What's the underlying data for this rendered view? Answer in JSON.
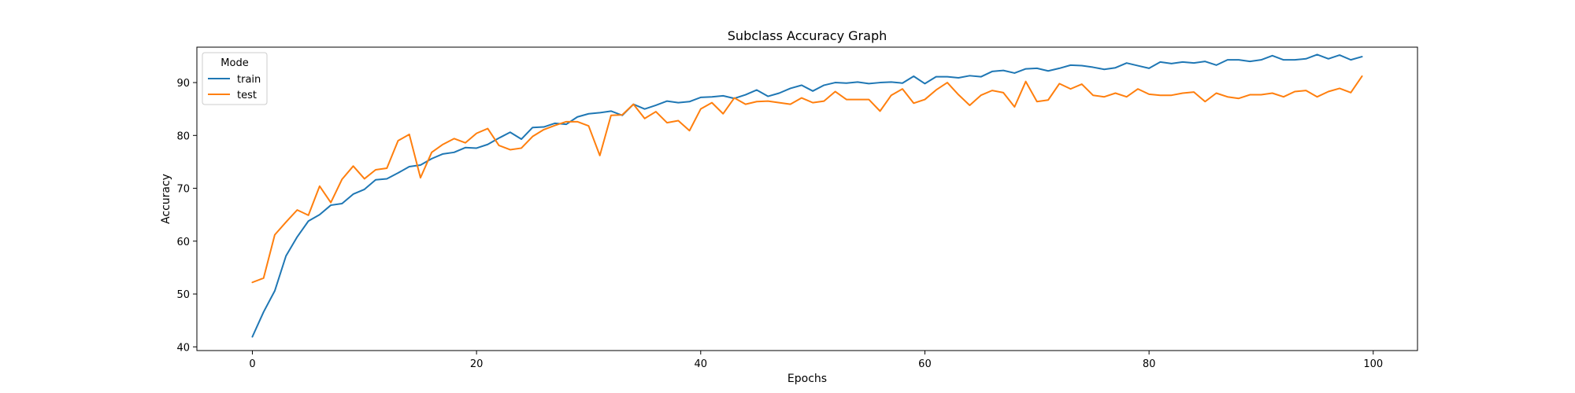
{
  "chart_data": {
    "type": "line",
    "title": "Subclass Accuracy Graph",
    "xlabel": "Epochs",
    "ylabel": "Accuracy",
    "xlim": [
      -4.95,
      103.95
    ],
    "ylim": [
      39.3,
      96.7
    ],
    "xticks": [
      0,
      20,
      40,
      60,
      80,
      100
    ],
    "yticks": [
      40,
      50,
      60,
      70,
      80,
      90
    ],
    "grid": false,
    "legend": {
      "title": "Mode",
      "placement": "top-left"
    },
    "x_start": 0,
    "x_step": 1,
    "series": [
      {
        "name": "train",
        "color": "#1f77b4",
        "values": [
          41.9,
          46.6,
          50.6,
          57.2,
          60.8,
          63.8,
          65.0,
          66.8,
          67.1,
          68.9,
          69.8,
          71.6,
          71.8,
          72.9,
          74.1,
          74.4,
          75.6,
          76.5,
          76.8,
          77.7,
          77.6,
          78.3,
          79.5,
          80.6,
          79.3,
          81.5,
          81.6,
          82.3,
          82.1,
          83.5,
          84.1,
          84.3,
          84.6,
          83.8,
          85.9,
          85.0,
          85.7,
          86.5,
          86.2,
          86.4,
          87.2,
          87.3,
          87.5,
          87.0,
          87.7,
          88.6,
          87.4,
          88.0,
          88.9,
          89.5,
          88.4,
          89.5,
          90.0,
          89.9,
          90.1,
          89.8,
          90.0,
          90.1,
          89.9,
          91.2,
          89.8,
          91.1,
          91.1,
          90.9,
          91.3,
          91.1,
          92.1,
          92.3,
          91.8,
          92.6,
          92.7,
          92.2,
          92.7,
          93.3,
          93.2,
          92.9,
          92.5,
          92.8,
          93.7,
          93.2,
          92.7,
          93.9,
          93.6,
          93.9,
          93.7,
          94.0,
          93.3,
          94.3,
          94.3,
          94.0,
          94.3,
          95.1,
          94.3,
          94.3,
          94.5,
          95.3,
          94.5,
          95.2,
          94.3,
          94.9
        ]
      },
      {
        "name": "test",
        "color": "#ff7f0e",
        "values": [
          52.2,
          53.0,
          61.2,
          63.6,
          65.9,
          64.9,
          70.4,
          67.3,
          71.7,
          74.2,
          71.8,
          73.5,
          73.8,
          79.0,
          80.2,
          72.0,
          76.8,
          78.3,
          79.4,
          78.6,
          80.4,
          81.3,
          78.1,
          77.3,
          77.6,
          79.8,
          81.1,
          81.9,
          82.6,
          82.6,
          81.8,
          76.2,
          83.8,
          83.9,
          85.9,
          83.2,
          84.5,
          82.4,
          82.8,
          80.9,
          85.0,
          86.2,
          84.1,
          87.1,
          85.9,
          86.4,
          86.5,
          86.2,
          85.9,
          87.1,
          86.2,
          86.5,
          88.3,
          86.8,
          86.8,
          86.8,
          84.6,
          87.6,
          88.8,
          86.1,
          86.8,
          88.6,
          90.0,
          87.7,
          85.7,
          87.6,
          88.5,
          88.1,
          85.4,
          90.2,
          86.4,
          86.7,
          89.8,
          88.8,
          89.7,
          87.6,
          87.3,
          88.0,
          87.3,
          88.8,
          87.8,
          87.6,
          87.6,
          88.0,
          88.2,
          86.4,
          88.0,
          87.3,
          87.0,
          87.7,
          87.7,
          88.0,
          87.3,
          88.3,
          88.5,
          87.3,
          88.3,
          88.9,
          88.1,
          91.2
        ]
      }
    ]
  }
}
